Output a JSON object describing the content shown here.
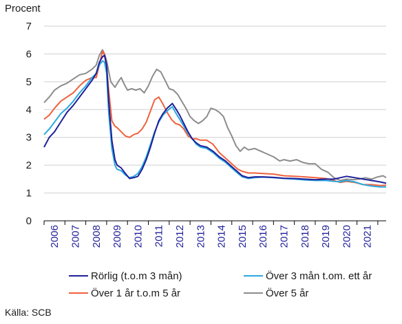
{
  "chart_data": {
    "type": "line",
    "ylabel": "Procent",
    "ylim": [
      0,
      7
    ],
    "yticks": [
      "0",
      "1",
      "2",
      "3",
      "4",
      "5",
      "6",
      "7"
    ],
    "xlim": [
      2005.5,
      2021.9
    ],
    "xticks": [
      "2006",
      "2007",
      "2008",
      "2009",
      "2010",
      "2011",
      "2012",
      "2013",
      "2014",
      "2015",
      "2016",
      "2017",
      "2018",
      "2019",
      "2020",
      "2021"
    ],
    "grid": "horizontal",
    "legend_position": "bottom",
    "source": "Källa: SCB",
    "series": [
      {
        "name": "Rörlig (t.o.m 3 mån)",
        "color": "#1f1f99",
        "points": [
          [
            2005.5,
            2.65
          ],
          [
            2005.75,
            3.0
          ],
          [
            2006.0,
            3.2
          ],
          [
            2006.3,
            3.55
          ],
          [
            2006.6,
            3.9
          ],
          [
            2006.9,
            4.15
          ],
          [
            2007.2,
            4.45
          ],
          [
            2007.5,
            4.75
          ],
          [
            2007.8,
            5.05
          ],
          [
            2008.0,
            5.3
          ],
          [
            2008.15,
            5.7
          ],
          [
            2008.3,
            5.9
          ],
          [
            2008.4,
            5.95
          ],
          [
            2008.5,
            5.6
          ],
          [
            2008.6,
            4.3
          ],
          [
            2008.75,
            2.9
          ],
          [
            2008.9,
            2.2
          ],
          [
            2009.0,
            2.0
          ],
          [
            2009.2,
            1.9
          ],
          [
            2009.4,
            1.7
          ],
          [
            2009.6,
            1.52
          ],
          [
            2009.8,
            1.55
          ],
          [
            2010.0,
            1.6
          ],
          [
            2010.2,
            1.85
          ],
          [
            2010.4,
            2.2
          ],
          [
            2010.6,
            2.65
          ],
          [
            2010.8,
            3.15
          ],
          [
            2011.0,
            3.6
          ],
          [
            2011.2,
            3.85
          ],
          [
            2011.4,
            4.05
          ],
          [
            2011.55,
            4.15
          ],
          [
            2011.65,
            4.22
          ],
          [
            2011.8,
            4.05
          ],
          [
            2012.0,
            3.8
          ],
          [
            2012.2,
            3.5
          ],
          [
            2012.4,
            3.2
          ],
          [
            2012.6,
            2.95
          ],
          [
            2012.8,
            2.8
          ],
          [
            2013.0,
            2.7
          ],
          [
            2013.3,
            2.65
          ],
          [
            2013.6,
            2.5
          ],
          [
            2013.9,
            2.3
          ],
          [
            2014.2,
            2.15
          ],
          [
            2014.5,
            1.95
          ],
          [
            2014.8,
            1.75
          ],
          [
            2015.0,
            1.62
          ],
          [
            2015.3,
            1.55
          ],
          [
            2015.6,
            1.58
          ],
          [
            2016.0,
            1.58
          ],
          [
            2016.5,
            1.56
          ],
          [
            2017.0,
            1.53
          ],
          [
            2017.5,
            1.52
          ],
          [
            2018.0,
            1.5
          ],
          [
            2018.5,
            1.48
          ],
          [
            2019.0,
            1.5
          ],
          [
            2019.4,
            1.5
          ],
          [
            2019.7,
            1.55
          ],
          [
            2020.0,
            1.6
          ],
          [
            2020.4,
            1.55
          ],
          [
            2020.8,
            1.5
          ],
          [
            2021.2,
            1.45
          ],
          [
            2021.6,
            1.4
          ],
          [
            2021.9,
            1.35
          ]
        ]
      },
      {
        "name": "Över 3 mån t.om. ett år",
        "color": "#29a8e0",
        "points": [
          [
            2005.5,
            3.1
          ],
          [
            2005.75,
            3.3
          ],
          [
            2006.0,
            3.55
          ],
          [
            2006.3,
            3.85
          ],
          [
            2006.6,
            4.05
          ],
          [
            2006.9,
            4.3
          ],
          [
            2007.2,
            4.6
          ],
          [
            2007.5,
            4.85
          ],
          [
            2007.8,
            5.15
          ],
          [
            2008.0,
            5.3
          ],
          [
            2008.15,
            5.6
          ],
          [
            2008.3,
            5.75
          ],
          [
            2008.4,
            5.7
          ],
          [
            2008.5,
            5.3
          ],
          [
            2008.6,
            3.9
          ],
          [
            2008.75,
            2.6
          ],
          [
            2008.9,
            2.0
          ],
          [
            2009.0,
            1.85
          ],
          [
            2009.2,
            1.8
          ],
          [
            2009.4,
            1.65
          ],
          [
            2009.6,
            1.55
          ],
          [
            2009.8,
            1.6
          ],
          [
            2010.0,
            1.7
          ],
          [
            2010.2,
            1.95
          ],
          [
            2010.4,
            2.3
          ],
          [
            2010.6,
            2.75
          ],
          [
            2010.8,
            3.2
          ],
          [
            2011.0,
            3.55
          ],
          [
            2011.2,
            3.8
          ],
          [
            2011.4,
            3.95
          ],
          [
            2011.55,
            4.05
          ],
          [
            2011.65,
            4.1
          ],
          [
            2011.8,
            3.9
          ],
          [
            2012.0,
            3.65
          ],
          [
            2012.2,
            3.4
          ],
          [
            2012.4,
            3.15
          ],
          [
            2012.6,
            2.95
          ],
          [
            2012.8,
            2.75
          ],
          [
            2013.0,
            2.65
          ],
          [
            2013.3,
            2.6
          ],
          [
            2013.6,
            2.45
          ],
          [
            2013.9,
            2.25
          ],
          [
            2014.2,
            2.1
          ],
          [
            2014.5,
            1.9
          ],
          [
            2014.8,
            1.7
          ],
          [
            2015.0,
            1.58
          ],
          [
            2015.3,
            1.52
          ],
          [
            2015.6,
            1.55
          ],
          [
            2016.0,
            1.57
          ],
          [
            2016.5,
            1.55
          ],
          [
            2017.0,
            1.52
          ],
          [
            2017.5,
            1.5
          ],
          [
            2018.0,
            1.47
          ],
          [
            2018.5,
            1.45
          ],
          [
            2019.0,
            1.45
          ],
          [
            2019.4,
            1.42
          ],
          [
            2019.7,
            1.4
          ],
          [
            2020.0,
            1.45
          ],
          [
            2020.4,
            1.4
          ],
          [
            2020.8,
            1.3
          ],
          [
            2021.2,
            1.25
          ],
          [
            2021.6,
            1.22
          ],
          [
            2021.9,
            1.22
          ]
        ]
      },
      {
        "name": "Över 1 år t.o.m 5 år",
        "color": "#f0603c",
        "points": [
          [
            2005.5,
            3.65
          ],
          [
            2005.75,
            3.8
          ],
          [
            2006.0,
            4.05
          ],
          [
            2006.3,
            4.3
          ],
          [
            2006.6,
            4.45
          ],
          [
            2006.9,
            4.6
          ],
          [
            2007.2,
            4.85
          ],
          [
            2007.5,
            5.05
          ],
          [
            2007.8,
            5.15
          ],
          [
            2008.0,
            5.15
          ],
          [
            2008.15,
            5.6
          ],
          [
            2008.3,
            6.1
          ],
          [
            2008.4,
            5.95
          ],
          [
            2008.5,
            5.5
          ],
          [
            2008.6,
            4.7
          ],
          [
            2008.75,
            3.6
          ],
          [
            2008.9,
            3.4
          ],
          [
            2009.0,
            3.35
          ],
          [
            2009.2,
            3.2
          ],
          [
            2009.4,
            3.05
          ],
          [
            2009.6,
            3.0
          ],
          [
            2009.8,
            3.1
          ],
          [
            2010.0,
            3.15
          ],
          [
            2010.2,
            3.3
          ],
          [
            2010.4,
            3.55
          ],
          [
            2010.6,
            3.95
          ],
          [
            2010.8,
            4.35
          ],
          [
            2011.0,
            4.45
          ],
          [
            2011.2,
            4.2
          ],
          [
            2011.4,
            3.9
          ],
          [
            2011.6,
            3.65
          ],
          [
            2011.8,
            3.5
          ],
          [
            2012.0,
            3.45
          ],
          [
            2012.2,
            3.3
          ],
          [
            2012.4,
            3.05
          ],
          [
            2012.6,
            2.95
          ],
          [
            2012.8,
            2.95
          ],
          [
            2013.0,
            2.9
          ],
          [
            2013.3,
            2.9
          ],
          [
            2013.6,
            2.75
          ],
          [
            2013.9,
            2.45
          ],
          [
            2014.2,
            2.25
          ],
          [
            2014.5,
            2.05
          ],
          [
            2014.8,
            1.85
          ],
          [
            2015.0,
            1.78
          ],
          [
            2015.3,
            1.72
          ],
          [
            2015.6,
            1.72
          ],
          [
            2016.0,
            1.7
          ],
          [
            2016.5,
            1.68
          ],
          [
            2017.0,
            1.62
          ],
          [
            2017.5,
            1.6
          ],
          [
            2018.0,
            1.58
          ],
          [
            2018.5,
            1.55
          ],
          [
            2019.0,
            1.52
          ],
          [
            2019.4,
            1.45
          ],
          [
            2019.7,
            1.38
          ],
          [
            2020.0,
            1.42
          ],
          [
            2020.4,
            1.38
          ],
          [
            2020.8,
            1.3
          ],
          [
            2021.2,
            1.3
          ],
          [
            2021.6,
            1.27
          ],
          [
            2021.9,
            1.28
          ]
        ]
      },
      {
        "name": "Över 5 år",
        "color": "#8c8c8c",
        "points": [
          [
            2005.5,
            4.25
          ],
          [
            2005.75,
            4.45
          ],
          [
            2006.0,
            4.7
          ],
          [
            2006.3,
            4.85
          ],
          [
            2006.6,
            4.95
          ],
          [
            2006.9,
            5.1
          ],
          [
            2007.2,
            5.25
          ],
          [
            2007.5,
            5.3
          ],
          [
            2007.8,
            5.45
          ],
          [
            2008.0,
            5.6
          ],
          [
            2008.15,
            5.95
          ],
          [
            2008.3,
            6.15
          ],
          [
            2008.4,
            6.0
          ],
          [
            2008.5,
            5.75
          ],
          [
            2008.7,
            5.0
          ],
          [
            2008.9,
            4.8
          ],
          [
            2009.1,
            5.05
          ],
          [
            2009.2,
            5.15
          ],
          [
            2009.35,
            4.9
          ],
          [
            2009.5,
            4.7
          ],
          [
            2009.7,
            4.75
          ],
          [
            2009.9,
            4.7
          ],
          [
            2010.1,
            4.75
          ],
          [
            2010.3,
            4.6
          ],
          [
            2010.5,
            4.85
          ],
          [
            2010.7,
            5.2
          ],
          [
            2010.9,
            5.45
          ],
          [
            2011.1,
            5.35
          ],
          [
            2011.3,
            5.05
          ],
          [
            2011.5,
            4.75
          ],
          [
            2011.7,
            4.7
          ],
          [
            2011.9,
            4.55
          ],
          [
            2012.1,
            4.3
          ],
          [
            2012.3,
            4.05
          ],
          [
            2012.5,
            3.75
          ],
          [
            2012.7,
            3.6
          ],
          [
            2012.9,
            3.5
          ],
          [
            2013.1,
            3.6
          ],
          [
            2013.3,
            3.75
          ],
          [
            2013.5,
            4.05
          ],
          [
            2013.7,
            4.0
          ],
          [
            2013.9,
            3.9
          ],
          [
            2014.1,
            3.75
          ],
          [
            2014.3,
            3.35
          ],
          [
            2014.5,
            3.05
          ],
          [
            2014.7,
            2.7
          ],
          [
            2014.9,
            2.5
          ],
          [
            2015.1,
            2.65
          ],
          [
            2015.3,
            2.55
          ],
          [
            2015.6,
            2.6
          ],
          [
            2015.9,
            2.5
          ],
          [
            2016.2,
            2.4
          ],
          [
            2016.5,
            2.3
          ],
          [
            2016.8,
            2.15
          ],
          [
            2017.0,
            2.2
          ],
          [
            2017.3,
            2.15
          ],
          [
            2017.6,
            2.2
          ],
          [
            2017.9,
            2.1
          ],
          [
            2018.2,
            2.05
          ],
          [
            2018.5,
            2.05
          ],
          [
            2018.8,
            1.85
          ],
          [
            2019.1,
            1.75
          ],
          [
            2019.4,
            1.55
          ],
          [
            2019.7,
            1.45
          ],
          [
            2020.0,
            1.5
          ],
          [
            2020.3,
            1.48
          ],
          [
            2020.6,
            1.5
          ],
          [
            2020.9,
            1.55
          ],
          [
            2021.2,
            1.5
          ],
          [
            2021.5,
            1.58
          ],
          [
            2021.75,
            1.62
          ],
          [
            2021.9,
            1.55
          ]
        ]
      }
    ]
  }
}
